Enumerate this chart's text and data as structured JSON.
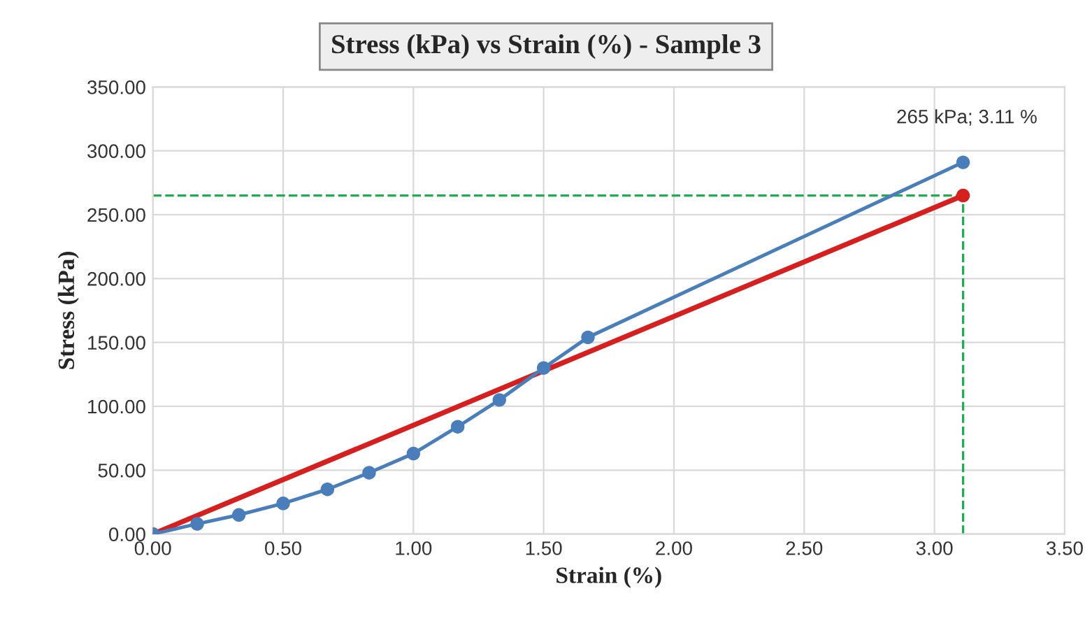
{
  "chart_data": {
    "type": "line",
    "title": "Stress (kPa) vs Strain (%) - Sample 3",
    "xlabel": "Strain (%)",
    "ylabel": "Stress (kPa)",
    "series": [
      {
        "color": "#d62020",
        "x": [
          0,
          3.11
        ],
        "values": [
          0,
          265
        ],
        "marker": "circle"
      },
      {
        "color": "#4a7ebb",
        "x": [
          0,
          0.17,
          0.33,
          0.5,
          0.67,
          0.83,
          1.0,
          1.17,
          1.33,
          1.5,
          1.67,
          3.11
        ],
        "values": [
          0,
          8,
          15,
          24,
          35,
          48,
          63,
          84,
          105,
          130,
          154,
          291
        ],
        "marker": "circle"
      }
    ],
    "ref_lines": [
      {
        "axis": "y",
        "value": 265,
        "color": "#22aa55",
        "line_style": "dashed"
      },
      {
        "axis": "x",
        "value": 3.11,
        "color": "#22aa55",
        "line_style": "dashed"
      }
    ],
    "annotations": [
      "265 kPa; 3.11 %"
    ],
    "xlim": [
      0,
      3.5
    ],
    "ylim": [
      0,
      350
    ],
    "xticks": [
      {
        "value": 0,
        "label": "0.00"
      },
      {
        "value": 0.5,
        "label": "0.50"
      },
      {
        "value": 1,
        "label": "1.00"
      },
      {
        "value": 1.5,
        "label": "1.50"
      },
      {
        "value": 2,
        "label": "2.00"
      },
      {
        "value": 2.5,
        "label": "2.50"
      },
      {
        "value": 3,
        "label": "3.00"
      },
      {
        "value": 3.5,
        "label": "3.50"
      }
    ],
    "yticks": [
      {
        "value": 0,
        "label": "0.00"
      },
      {
        "value": 50,
        "label": "50.00"
      },
      {
        "value": 100,
        "label": "100.00"
      },
      {
        "value": 150,
        "label": "150.00"
      },
      {
        "value": 200,
        "label": "200.00"
      },
      {
        "value": 250,
        "label": "250.00"
      },
      {
        "value": 300,
        "label": "300.00"
      },
      {
        "value": 350,
        "label": "350.00"
      }
    ],
    "grid": true,
    "legend": false
  }
}
